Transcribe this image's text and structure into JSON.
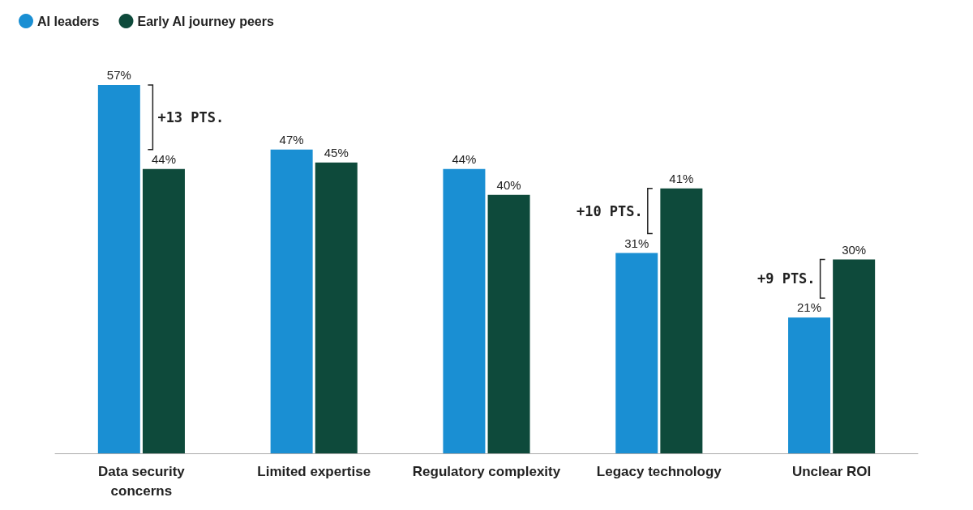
{
  "chart_data": {
    "type": "bar",
    "categories": [
      "Data security\nconcerns",
      "Limited expertise",
      "Regulatory complexity",
      "Legacy technology",
      "Unclear ROI"
    ],
    "series": [
      {
        "name": "AI leaders",
        "color": "#1a8fd3",
        "values": [
          57,
          47,
          44,
          31,
          21
        ],
        "value_labels": [
          "57%",
          "47%",
          "44%",
          "31%",
          "21%"
        ]
      },
      {
        "name": "Early AI journey peers",
        "color": "#0e4a3b",
        "values": [
          44,
          45,
          40,
          41,
          30
        ],
        "value_labels": [
          "44%",
          "45%",
          "40%",
          "41%",
          "30%"
        ]
      }
    ],
    "annotations": [
      {
        "text": "+13 PTS.",
        "x": "Data security\nconcerns",
        "y": 57
      },
      {
        "text": "+10 PTS.",
        "x": "Legacy technology",
        "y": 41
      },
      {
        "text": "+9 PTS.",
        "x": "Unclear ROI",
        "y": 30
      }
    ],
    "legend": "top left"
  }
}
